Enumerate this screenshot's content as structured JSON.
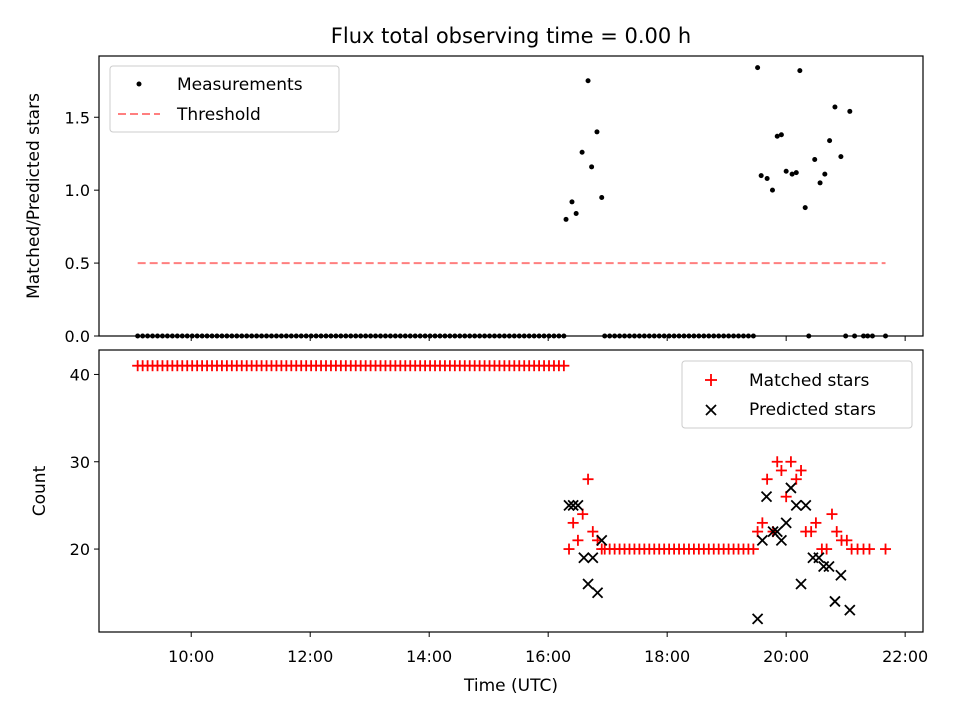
{
  "title": "Flux total observing time = 0.00 h",
  "chart_data": [
    {
      "type": "scatter",
      "ylabel": "Matched/Predicted stars",
      "xlim": [
        8.45,
        22.3
      ],
      "ylim": [
        0.0,
        1.92
      ],
      "yticks": [
        0.0,
        0.5,
        1.0,
        1.5
      ],
      "ytick_labels": [
        "0.0",
        "0.5",
        "1.0",
        "1.5"
      ],
      "legend_position": "upper-left",
      "series": [
        {
          "name": "Measurements",
          "marker": "dot",
          "color": "#000000",
          "zero_runs": [
            {
              "start": 9.1,
              "end": 16.25,
              "step": 0.0833
            },
            {
              "start": 16.95,
              "end": 19.45,
              "step": 0.0833
            }
          ],
          "points": [
            [
              16.3,
              0.8
            ],
            [
              16.4,
              0.92
            ],
            [
              16.47,
              0.84
            ],
            [
              16.57,
              1.26
            ],
            [
              16.67,
              1.75
            ],
            [
              16.73,
              1.16
            ],
            [
              16.82,
              1.4
            ],
            [
              16.9,
              0.95
            ],
            [
              19.52,
              1.84
            ],
            [
              19.58,
              1.1
            ],
            [
              19.68,
              1.08
            ],
            [
              19.77,
              1.0
            ],
            [
              19.85,
              1.37
            ],
            [
              19.92,
              1.38
            ],
            [
              20.0,
              1.13
            ],
            [
              20.1,
              1.11
            ],
            [
              20.17,
              1.12
            ],
            [
              20.23,
              1.82
            ],
            [
              20.32,
              0.88
            ],
            [
              20.38,
              0.0
            ],
            [
              20.48,
              1.21
            ],
            [
              20.57,
              1.05
            ],
            [
              20.65,
              1.11
            ],
            [
              20.73,
              1.34
            ],
            [
              20.82,
              1.57
            ],
            [
              20.92,
              1.23
            ],
            [
              21.0,
              0.0
            ],
            [
              21.07,
              1.54
            ],
            [
              21.15,
              0.0
            ],
            [
              21.3,
              0.0
            ],
            [
              21.37,
              0.0
            ],
            [
              21.45,
              0.0
            ],
            [
              21.67,
              0.0
            ]
          ]
        },
        {
          "name": "Threshold",
          "style": "dashed",
          "color": "#ff7f7f",
          "x": [
            9.1,
            21.67
          ],
          "y": [
            0.5,
            0.5
          ]
        }
      ]
    },
    {
      "type": "scatter",
      "ylabel": "Count",
      "xlabel": "Time (UTC)",
      "xlim": [
        8.45,
        22.3
      ],
      "ylim": [
        10.5,
        42.8
      ],
      "yticks": [
        20,
        30,
        40
      ],
      "ytick_labels": [
        "20",
        "30",
        "40"
      ],
      "xticks": [
        10,
        12,
        14,
        16,
        18,
        20,
        22
      ],
      "xtick_labels": [
        "10:00",
        "12:00",
        "14:00",
        "16:00",
        "18:00",
        "20:00",
        "22:00"
      ],
      "legend_position": "upper-right",
      "series": [
        {
          "name": "Matched stars",
          "marker": "plus",
          "color": "#ff0000",
          "runs": [
            {
              "start": 9.1,
              "end": 16.25,
              "step": 0.0833,
              "value": 41
            },
            {
              "start": 16.95,
              "end": 19.45,
              "step": 0.0833,
              "value": 20
            }
          ],
          "points": [
            [
              16.35,
              20
            ],
            [
              16.42,
              23
            ],
            [
              16.5,
              21
            ],
            [
              16.58,
              24
            ],
            [
              16.67,
              28
            ],
            [
              16.75,
              22
            ],
            [
              16.83,
              21
            ],
            [
              16.9,
              20
            ],
            [
              19.52,
              22
            ],
            [
              19.6,
              23
            ],
            [
              19.68,
              28
            ],
            [
              19.78,
              22
            ],
            [
              19.85,
              30
            ],
            [
              19.92,
              29
            ],
            [
              20.0,
              26
            ],
            [
              20.08,
              30
            ],
            [
              20.17,
              28
            ],
            [
              20.25,
              29
            ],
            [
              20.33,
              22
            ],
            [
              20.42,
              22
            ],
            [
              20.5,
              23
            ],
            [
              20.6,
              20
            ],
            [
              20.68,
              20
            ],
            [
              20.77,
              24
            ],
            [
              20.85,
              22
            ],
            [
              20.93,
              21
            ],
            [
              21.02,
              21
            ],
            [
              21.1,
              20
            ],
            [
              21.2,
              20
            ],
            [
              21.3,
              20
            ],
            [
              21.4,
              20
            ],
            [
              21.67,
              20
            ]
          ]
        },
        {
          "name": "Predicted stars",
          "marker": "x",
          "color": "#000000",
          "points": [
            [
              16.35,
              25
            ],
            [
              16.42,
              25
            ],
            [
              16.5,
              25
            ],
            [
              16.6,
              19
            ],
            [
              16.67,
              16
            ],
            [
              16.75,
              19
            ],
            [
              16.83,
              15
            ],
            [
              16.9,
              21
            ],
            [
              19.52,
              12
            ],
            [
              19.6,
              21
            ],
            [
              19.67,
              26
            ],
            [
              19.78,
              22
            ],
            [
              19.85,
              22
            ],
            [
              19.92,
              21
            ],
            [
              20.0,
              23
            ],
            [
              20.08,
              27
            ],
            [
              20.17,
              25
            ],
            [
              20.25,
              16
            ],
            [
              20.33,
              25
            ],
            [
              20.45,
              19
            ],
            [
              20.55,
              19
            ],
            [
              20.63,
              18
            ],
            [
              20.72,
              18
            ],
            [
              20.82,
              14
            ],
            [
              20.92,
              17
            ],
            [
              21.07,
              13
            ]
          ]
        }
      ]
    }
  ]
}
